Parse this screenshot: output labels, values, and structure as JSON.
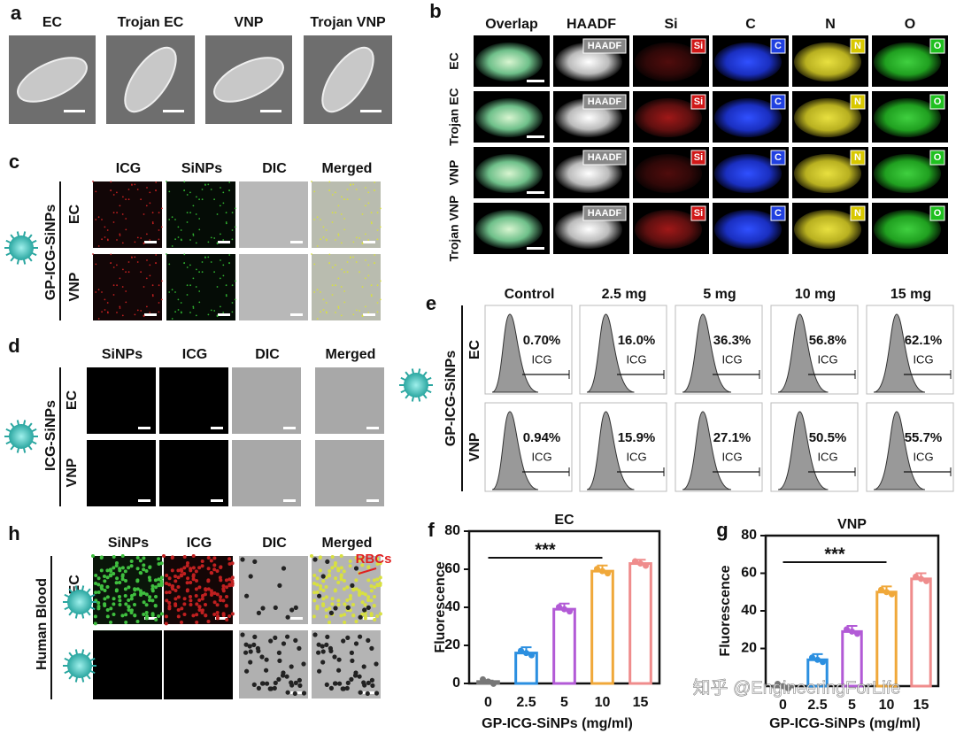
{
  "panel_a": {
    "label": "a",
    "columns": [
      "EC",
      "Trojan EC",
      "VNP",
      "Trojan VNP"
    ]
  },
  "panel_b": {
    "label": "b",
    "columns": [
      "Overlap",
      "HAADF",
      "Si",
      "C",
      "N",
      "O"
    ],
    "rows": [
      "EC",
      "Trojan EC",
      "VNP",
      "Trojan VNP"
    ]
  },
  "panel_c": {
    "label": "c",
    "group": "GP-ICG-SiNPs",
    "columns": [
      "ICG",
      "SiNPs",
      "DIC",
      "Merged"
    ],
    "rows": [
      "EC",
      "VNP"
    ]
  },
  "panel_d": {
    "label": "d",
    "group": "ICG-SiNPs",
    "columns": [
      "SiNPs",
      "ICG",
      "DIC",
      "Merged"
    ],
    "rows": [
      "EC",
      "VNP"
    ]
  },
  "panel_e": {
    "label": "e",
    "group": "GP-ICG-SiNPs",
    "columns": [
      "Control",
      "2.5 mg",
      "5 mg",
      "10 mg",
      "15 mg"
    ],
    "rows": [
      "EC",
      "VNP"
    ],
    "gate": "ICG",
    "percentages": [
      [
        "0.70%",
        "16.0%",
        "36.3%",
        "56.8%",
        "62.1%"
      ],
      [
        "0.94%",
        "15.9%",
        "27.1%",
        "50.5%",
        "55.7%"
      ]
    ]
  },
  "panel_h": {
    "label": "h",
    "group": "Human Blood",
    "row_label": "+EC",
    "annotation": "RBCs",
    "columns": [
      "SiNPs",
      "ICG",
      "DIC",
      "Merged"
    ]
  },
  "chart_data": [
    {
      "label": "f",
      "type": "bar",
      "title": "EC",
      "ylabel": "Fluorescence",
      "xlabel": "GP-ICG-SiNPs (mg/ml)",
      "significance": "***",
      "categories": [
        "0",
        "2.5",
        "5",
        "10",
        "15"
      ],
      "values": [
        1,
        16,
        39,
        59,
        63
      ],
      "errors": [
        0.5,
        3,
        3,
        3,
        2
      ],
      "colors": [
        "#777777",
        "#2b8fe0",
        "#b25ad6",
        "#f0a83a",
        "#ef8c8c"
      ],
      "ylim": [
        0,
        80
      ],
      "yticks": [
        0,
        20,
        40,
        60,
        80
      ]
    },
    {
      "label": "g",
      "type": "bar",
      "title": "VNP",
      "ylabel": "Fluorescence",
      "xlabel": "GP-ICG-SiNPs (mg/ml)",
      "significance": "***",
      "categories": [
        "0",
        "2.5",
        "5",
        "10",
        "15"
      ],
      "values": [
        0,
        14,
        29,
        50,
        57
      ],
      "errors": [
        0,
        3,
        3,
        3,
        3
      ],
      "colors": [
        "#777777",
        "#2b8fe0",
        "#b25ad6",
        "#f0a83a",
        "#ef8c8c"
      ],
      "ylim": [
        0,
        80
      ],
      "yticks": [
        20,
        40,
        60,
        80
      ]
    }
  ],
  "watermark": "知乎 @EngineeringForLife"
}
